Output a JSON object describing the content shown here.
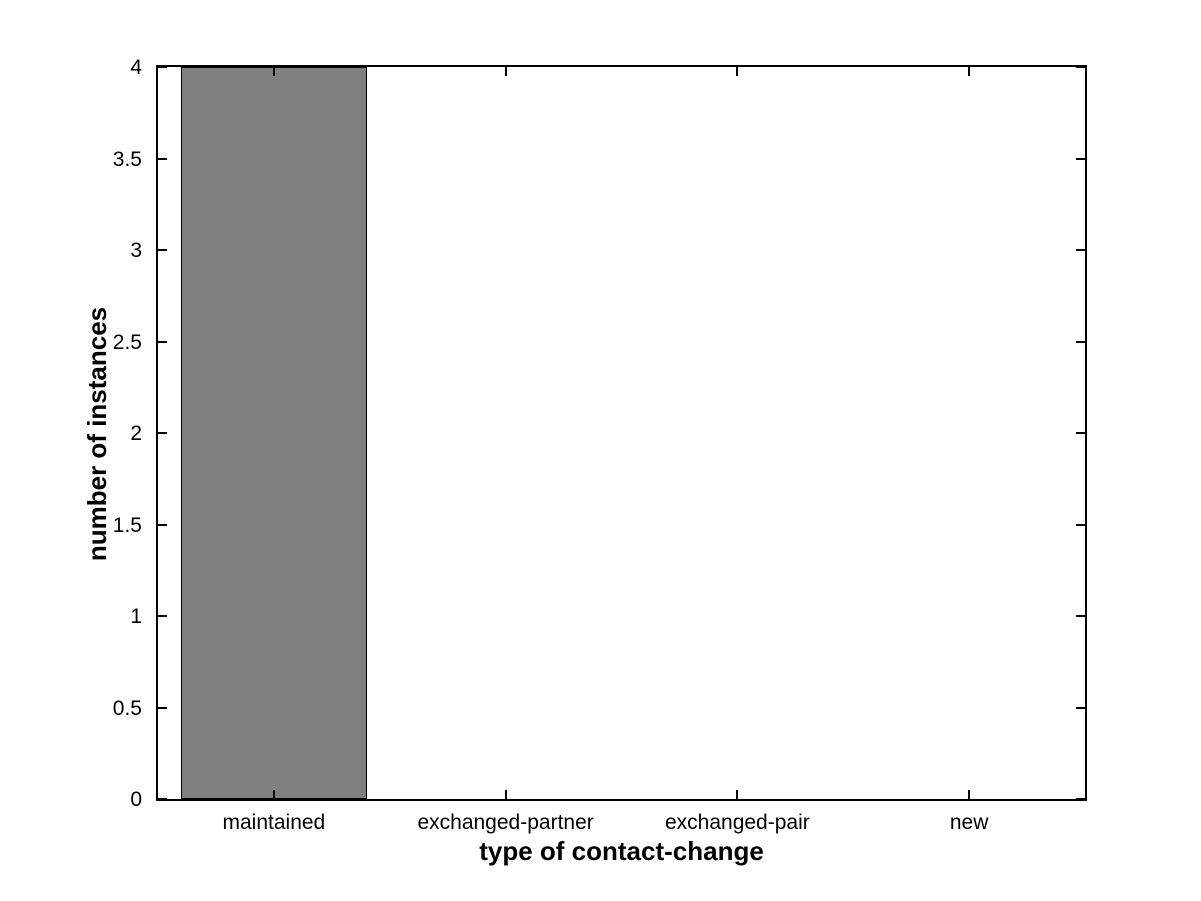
{
  "figure": {
    "background": "#ffffff"
  },
  "chart_data": {
    "type": "bar",
    "categories": [
      "maintained",
      "exchanged-partner",
      "exchanged-pair",
      "new"
    ],
    "values": [
      4,
      0,
      0,
      0
    ],
    "title": "",
    "xlabel": "type of contact-change",
    "ylabel": "number of instances",
    "ylim": [
      0,
      4
    ],
    "yticks": [
      0,
      0.5,
      1,
      1.5,
      2,
      2.5,
      3,
      3.5,
      4
    ],
    "ytick_labels": [
      "0",
      "0.5",
      "1",
      "1.5",
      "2",
      "2.5",
      "3",
      "3.5",
      "4"
    ],
    "bar_width_fraction": 0.8,
    "bar_color": "#7f7f7f",
    "bar_edge_color": "#000000",
    "axis_color": "#000000",
    "grid": false,
    "legend": null,
    "box": true
  }
}
